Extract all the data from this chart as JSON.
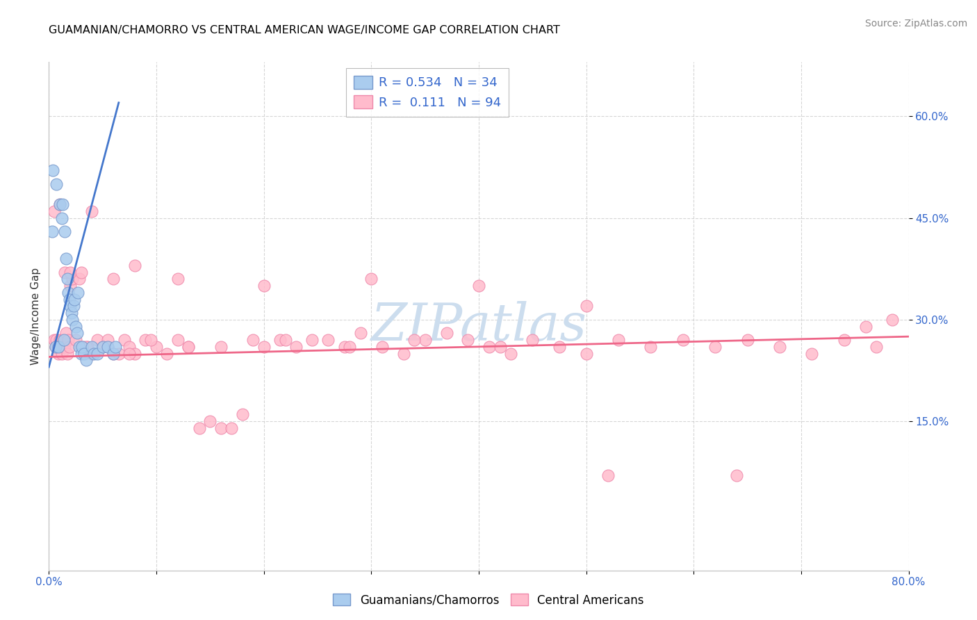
{
  "title": "GUAMANIAN/CHAMORRO VS CENTRAL AMERICAN WAGE/INCOME GAP CORRELATION CHART",
  "source": "Source: ZipAtlas.com",
  "ylabel": "Wage/Income Gap",
  "xlim": [
    0.0,
    0.8
  ],
  "ylim": [
    -0.07,
    0.68
  ],
  "ytick_positions": [
    0.15,
    0.3,
    0.45,
    0.6
  ],
  "ytick_labels": [
    "15.0%",
    "30.0%",
    "45.0%",
    "60.0%"
  ],
  "blue_color": "#aaccee",
  "blue_edge": "#7799cc",
  "pink_color": "#ffbbcc",
  "pink_edge": "#ee88aa",
  "blue_line_color": "#4477cc",
  "pink_line_color": "#ee6688",
  "watermark_color": "#ccddeebb",
  "legend_label1": "R = 0.534   N = 34",
  "legend_label2": "R =  0.111   N = 94",
  "blue_x": [
    0.004,
    0.007,
    0.01,
    0.012,
    0.013,
    0.015,
    0.016,
    0.017,
    0.018,
    0.019,
    0.02,
    0.021,
    0.022,
    0.023,
    0.024,
    0.025,
    0.026,
    0.027,
    0.028,
    0.03,
    0.031,
    0.033,
    0.035,
    0.04,
    0.042,
    0.045,
    0.05,
    0.055,
    0.06,
    0.062,
    0.003,
    0.006,
    0.009,
    0.014
  ],
  "blue_y": [
    0.52,
    0.5,
    0.47,
    0.45,
    0.47,
    0.43,
    0.39,
    0.36,
    0.34,
    0.33,
    0.32,
    0.31,
    0.3,
    0.32,
    0.33,
    0.29,
    0.28,
    0.34,
    0.26,
    0.25,
    0.26,
    0.25,
    0.24,
    0.26,
    0.25,
    0.25,
    0.26,
    0.26,
    0.25,
    0.26,
    0.43,
    0.26,
    0.26,
    0.27
  ],
  "pink_x": [
    0.005,
    0.006,
    0.007,
    0.008,
    0.009,
    0.01,
    0.011,
    0.012,
    0.013,
    0.014,
    0.015,
    0.016,
    0.017,
    0.018,
    0.019,
    0.02,
    0.022,
    0.025,
    0.028,
    0.032,
    0.036,
    0.04,
    0.045,
    0.05,
    0.055,
    0.06,
    0.065,
    0.07,
    0.075,
    0.08,
    0.09,
    0.1,
    0.11,
    0.12,
    0.13,
    0.14,
    0.15,
    0.16,
    0.17,
    0.18,
    0.19,
    0.2,
    0.215,
    0.23,
    0.245,
    0.26,
    0.275,
    0.29,
    0.31,
    0.33,
    0.35,
    0.37,
    0.39,
    0.41,
    0.43,
    0.45,
    0.475,
    0.5,
    0.53,
    0.56,
    0.59,
    0.62,
    0.65,
    0.68,
    0.71,
    0.74,
    0.77,
    0.005,
    0.01,
    0.015,
    0.02,
    0.03,
    0.04,
    0.06,
    0.08,
    0.12,
    0.2,
    0.3,
    0.4,
    0.5,
    0.035,
    0.055,
    0.075,
    0.095,
    0.13,
    0.16,
    0.22,
    0.28,
    0.34,
    0.42,
    0.52,
    0.64,
    0.76,
    0.785
  ],
  "pink_y": [
    0.27,
    0.26,
    0.27,
    0.26,
    0.25,
    0.27,
    0.26,
    0.25,
    0.27,
    0.26,
    0.26,
    0.28,
    0.25,
    0.27,
    0.26,
    0.35,
    0.36,
    0.27,
    0.36,
    0.26,
    0.26,
    0.25,
    0.27,
    0.26,
    0.26,
    0.25,
    0.25,
    0.27,
    0.26,
    0.25,
    0.27,
    0.26,
    0.25,
    0.27,
    0.26,
    0.14,
    0.15,
    0.14,
    0.14,
    0.16,
    0.27,
    0.26,
    0.27,
    0.26,
    0.27,
    0.27,
    0.26,
    0.28,
    0.26,
    0.25,
    0.27,
    0.28,
    0.27,
    0.26,
    0.25,
    0.27,
    0.26,
    0.25,
    0.27,
    0.26,
    0.27,
    0.26,
    0.27,
    0.26,
    0.25,
    0.27,
    0.26,
    0.46,
    0.47,
    0.37,
    0.37,
    0.37,
    0.46,
    0.36,
    0.38,
    0.36,
    0.35,
    0.36,
    0.35,
    0.32,
    0.26,
    0.27,
    0.25,
    0.27,
    0.26,
    0.26,
    0.27,
    0.26,
    0.27,
    0.26,
    0.07,
    0.07,
    0.29,
    0.3
  ],
  "blue_trend_x": [
    0.0,
    0.065
  ],
  "blue_trend_y": [
    0.23,
    0.62
  ],
  "pink_trend_x": [
    0.0,
    0.8
  ],
  "pink_trend_y": [
    0.245,
    0.275
  ]
}
